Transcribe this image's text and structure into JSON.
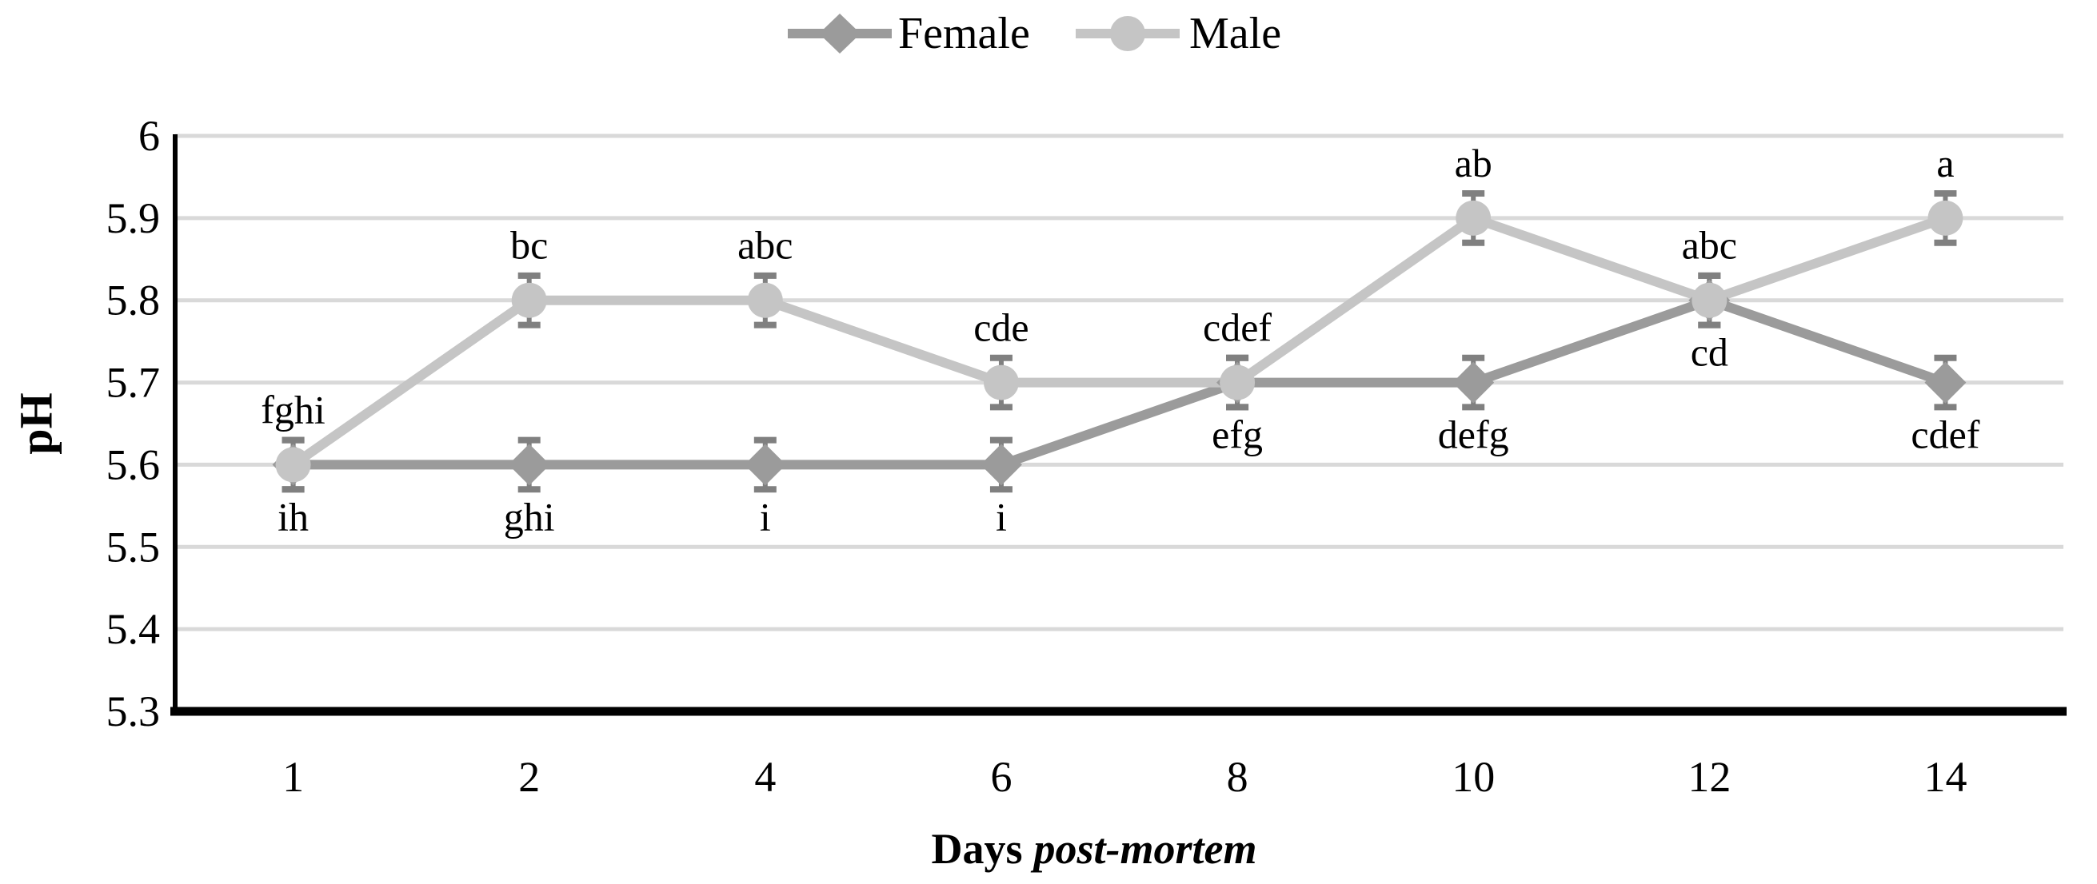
{
  "legend": {
    "items": [
      {
        "label": "Female",
        "marker": "diamond-icon",
        "color": "#9b9b9b"
      },
      {
        "label": "Male",
        "marker": "circle-icon",
        "color": "#c5c5c5"
      }
    ]
  },
  "axes": {
    "y_title": "pH",
    "x_title_prefix": "Days",
    "x_title_italic": "post-mortem",
    "y_tick_labels": [
      "6",
      "5.9",
      "5.8",
      "5.7",
      "5.6",
      "5.5",
      "5.4",
      "5.3"
    ],
    "x_tick_labels": [
      "1",
      "2",
      "4",
      "6",
      "8",
      "10",
      "12",
      "14"
    ]
  },
  "colors": {
    "gridline": "#d9d9d9",
    "error_bar": "#808080",
    "axis": "#000000",
    "text": "#000000",
    "background": "#ffffff",
    "female": "#9b9b9b",
    "male": "#c5c5c5"
  },
  "chart_data": {
    "type": "line",
    "title": "",
    "xlabel": "Days post-mortem",
    "ylabel": "pH",
    "categories": [
      1,
      2,
      4,
      6,
      8,
      10,
      12,
      14
    ],
    "ylim": [
      5.3,
      6.0
    ],
    "y_tick_step": 0.1,
    "grid": true,
    "legend_position": "top-center",
    "error_bar": 0.03,
    "series": [
      {
        "name": "Female",
        "marker": "diamond",
        "color": "#9b9b9b",
        "values": [
          5.6,
          5.6,
          5.6,
          5.6,
          5.7,
          5.7,
          5.8,
          5.7
        ],
        "point_labels": [
          "ih",
          "ghi",
          "i",
          "i",
          "efg",
          "defg",
          "cd",
          "cdef"
        ],
        "label_position": "below"
      },
      {
        "name": "Male",
        "marker": "circle",
        "color": "#c5c5c5",
        "values": [
          5.6,
          5.8,
          5.8,
          5.7,
          5.7,
          5.9,
          5.8,
          5.9
        ],
        "point_labels": [
          "fghi",
          "bc",
          "abc",
          "cde",
          "cdef",
          "ab",
          "abc",
          "a"
        ],
        "label_position": "above"
      }
    ]
  }
}
